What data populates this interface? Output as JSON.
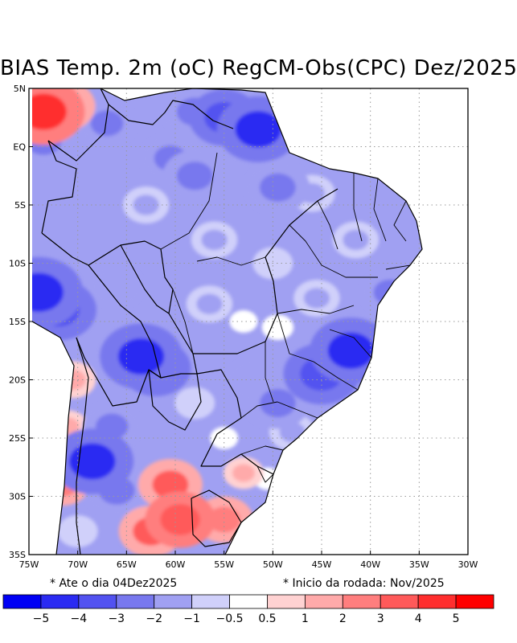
{
  "title": "BIAS Temp. 2m (oC) RegCM-Obs(CPC) Dez/2025",
  "notes": {
    "left": "* Ate o dia 04Dez2025",
    "right": "* Inicio da rodada: Nov/2025"
  },
  "axes": {
    "lon_range": [
      -75,
      -30
    ],
    "lat_range": [
      -35,
      5
    ],
    "x_ticks": [
      {
        "value": -75,
        "label": "75W"
      },
      {
        "value": -70,
        "label": "70W"
      },
      {
        "value": -65,
        "label": "65W"
      },
      {
        "value": -60,
        "label": "60W"
      },
      {
        "value": -55,
        "label": "55W"
      },
      {
        "value": -50,
        "label": "50W"
      },
      {
        "value": -45,
        "label": "45W"
      },
      {
        "value": -40,
        "label": "40W"
      },
      {
        "value": -35,
        "label": "35W"
      },
      {
        "value": -30,
        "label": "30W"
      }
    ],
    "y_ticks": [
      {
        "value": 5,
        "label": "5N"
      },
      {
        "value": 0,
        "label": "EQ"
      },
      {
        "value": -5,
        "label": "5S"
      },
      {
        "value": -10,
        "label": "10S"
      },
      {
        "value": -15,
        "label": "15S"
      },
      {
        "value": -20,
        "label": "20S"
      },
      {
        "value": -25,
        "label": "25S"
      },
      {
        "value": -30,
        "label": "30S"
      },
      {
        "value": -35,
        "label": "35S"
      }
    ]
  },
  "colorbar": {
    "colors": [
      "#0000f5",
      "#2b2bf2",
      "#5252f0",
      "#7878ee",
      "#a0a0f2",
      "#d0d0fa",
      "#ffffff",
      "#ffd2d2",
      "#ffaaaa",
      "#ff7e7e",
      "#ff5a5a",
      "#ff2e2e",
      "#ff0000"
    ],
    "labels": [
      "−5",
      "−4",
      "−3",
      "−2",
      "−1",
      "−0.5",
      "0.5",
      "1",
      "2",
      "3",
      "4",
      "5"
    ]
  },
  "colors": {
    "ocean": "#ffffff",
    "border": "#000000",
    "grid": "#9a9a9a",
    "land_base": "#a0a0f2"
  },
  "bias_field": [
    {
      "lon": -73.5,
      "lat": 3.0,
      "value": 4.5
    },
    {
      "lon": -71.5,
      "lat": 3.5,
      "value": 3
    },
    {
      "lon": -73.5,
      "lat": 0.5,
      "value": -3
    },
    {
      "lon": -74.0,
      "lat": -12.5,
      "value": -5
    },
    {
      "lon": -72.0,
      "lat": -14.0,
      "value": -4
    },
    {
      "lon": -67.0,
      "lat": 2.0,
      "value": -2.5
    },
    {
      "lon": -58.0,
      "lat": 3.0,
      "value": -3
    },
    {
      "lon": -55.0,
      "lat": 2.5,
      "value": -3.5
    },
    {
      "lon": -51.5,
      "lat": 1.5,
      "value": -4.5
    },
    {
      "lon": -58.0,
      "lat": -2.5,
      "value": -3
    },
    {
      "lon": -60.5,
      "lat": -1.0,
      "value": -2.5
    },
    {
      "lon": -49.5,
      "lat": -3.5,
      "value": -3
    },
    {
      "lon": -46.0,
      "lat": -4.0,
      "value": -1.5
    },
    {
      "lon": -63.0,
      "lat": -5.0,
      "value": -1.5
    },
    {
      "lon": -56.0,
      "lat": -8.0,
      "value": -1.5
    },
    {
      "lon": -50.0,
      "lat": -10.0,
      "value": -1
    },
    {
      "lon": -41.5,
      "lat": -8.0,
      "value": -1.5
    },
    {
      "lon": -38.0,
      "lat": -12.5,
      "value": -2.5
    },
    {
      "lon": -37.5,
      "lat": -6.0,
      "value": -2
    },
    {
      "lon": -66.0,
      "lat": -12.0,
      "value": -2
    },
    {
      "lon": -63.5,
      "lat": -18.0,
      "value": -4.5
    },
    {
      "lon": -62.0,
      "lat": -19.0,
      "value": -3.5
    },
    {
      "lon": -56.5,
      "lat": -13.5,
      "value": -1.5
    },
    {
      "lon": -53.0,
      "lat": -15.0,
      "value": 0
    },
    {
      "lon": -49.5,
      "lat": -15.5,
      "value": 0.3
    },
    {
      "lon": -45.5,
      "lat": -13.0,
      "value": -1.5
    },
    {
      "lon": -42.0,
      "lat": -17.5,
      "value": -4.5
    },
    {
      "lon": -45.0,
      "lat": -19.5,
      "value": -4
    },
    {
      "lon": -52.0,
      "lat": -20.0,
      "value": -2
    },
    {
      "lon": -49.5,
      "lat": -22.0,
      "value": -3
    },
    {
      "lon": -58.0,
      "lat": -22.0,
      "value": -1
    },
    {
      "lon": -55.0,
      "lat": -25.0,
      "value": 0
    },
    {
      "lon": -66.5,
      "lat": -24.0,
      "value": -2.5
    },
    {
      "lon": -68.5,
      "lat": -27.0,
      "value": -4.5
    },
    {
      "lon": -66.0,
      "lat": -29.5,
      "value": -3
    },
    {
      "lon": -60.5,
      "lat": -29.0,
      "value": 3
    },
    {
      "lon": -59.5,
      "lat": -32.0,
      "value": 3.5
    },
    {
      "lon": -62.5,
      "lat": -33.0,
      "value": 3
    },
    {
      "lon": -55.0,
      "lat": -32.0,
      "value": 2.5
    },
    {
      "lon": -53.0,
      "lat": -28.0,
      "value": 1
    },
    {
      "lon": -50.5,
      "lat": -28.5,
      "value": 0
    },
    {
      "lon": -48.0,
      "lat": -24.5,
      "value": -1.5
    },
    {
      "lon": -70.5,
      "lat": -20.0,
      "value": 1.5
    },
    {
      "lon": -71.0,
      "lat": -24.0,
      "value": 1
    },
    {
      "lon": -71.5,
      "lat": -29.0,
      "value": 2
    },
    {
      "lon": -70.0,
      "lat": -33.0,
      "value": -1
    }
  ]
}
